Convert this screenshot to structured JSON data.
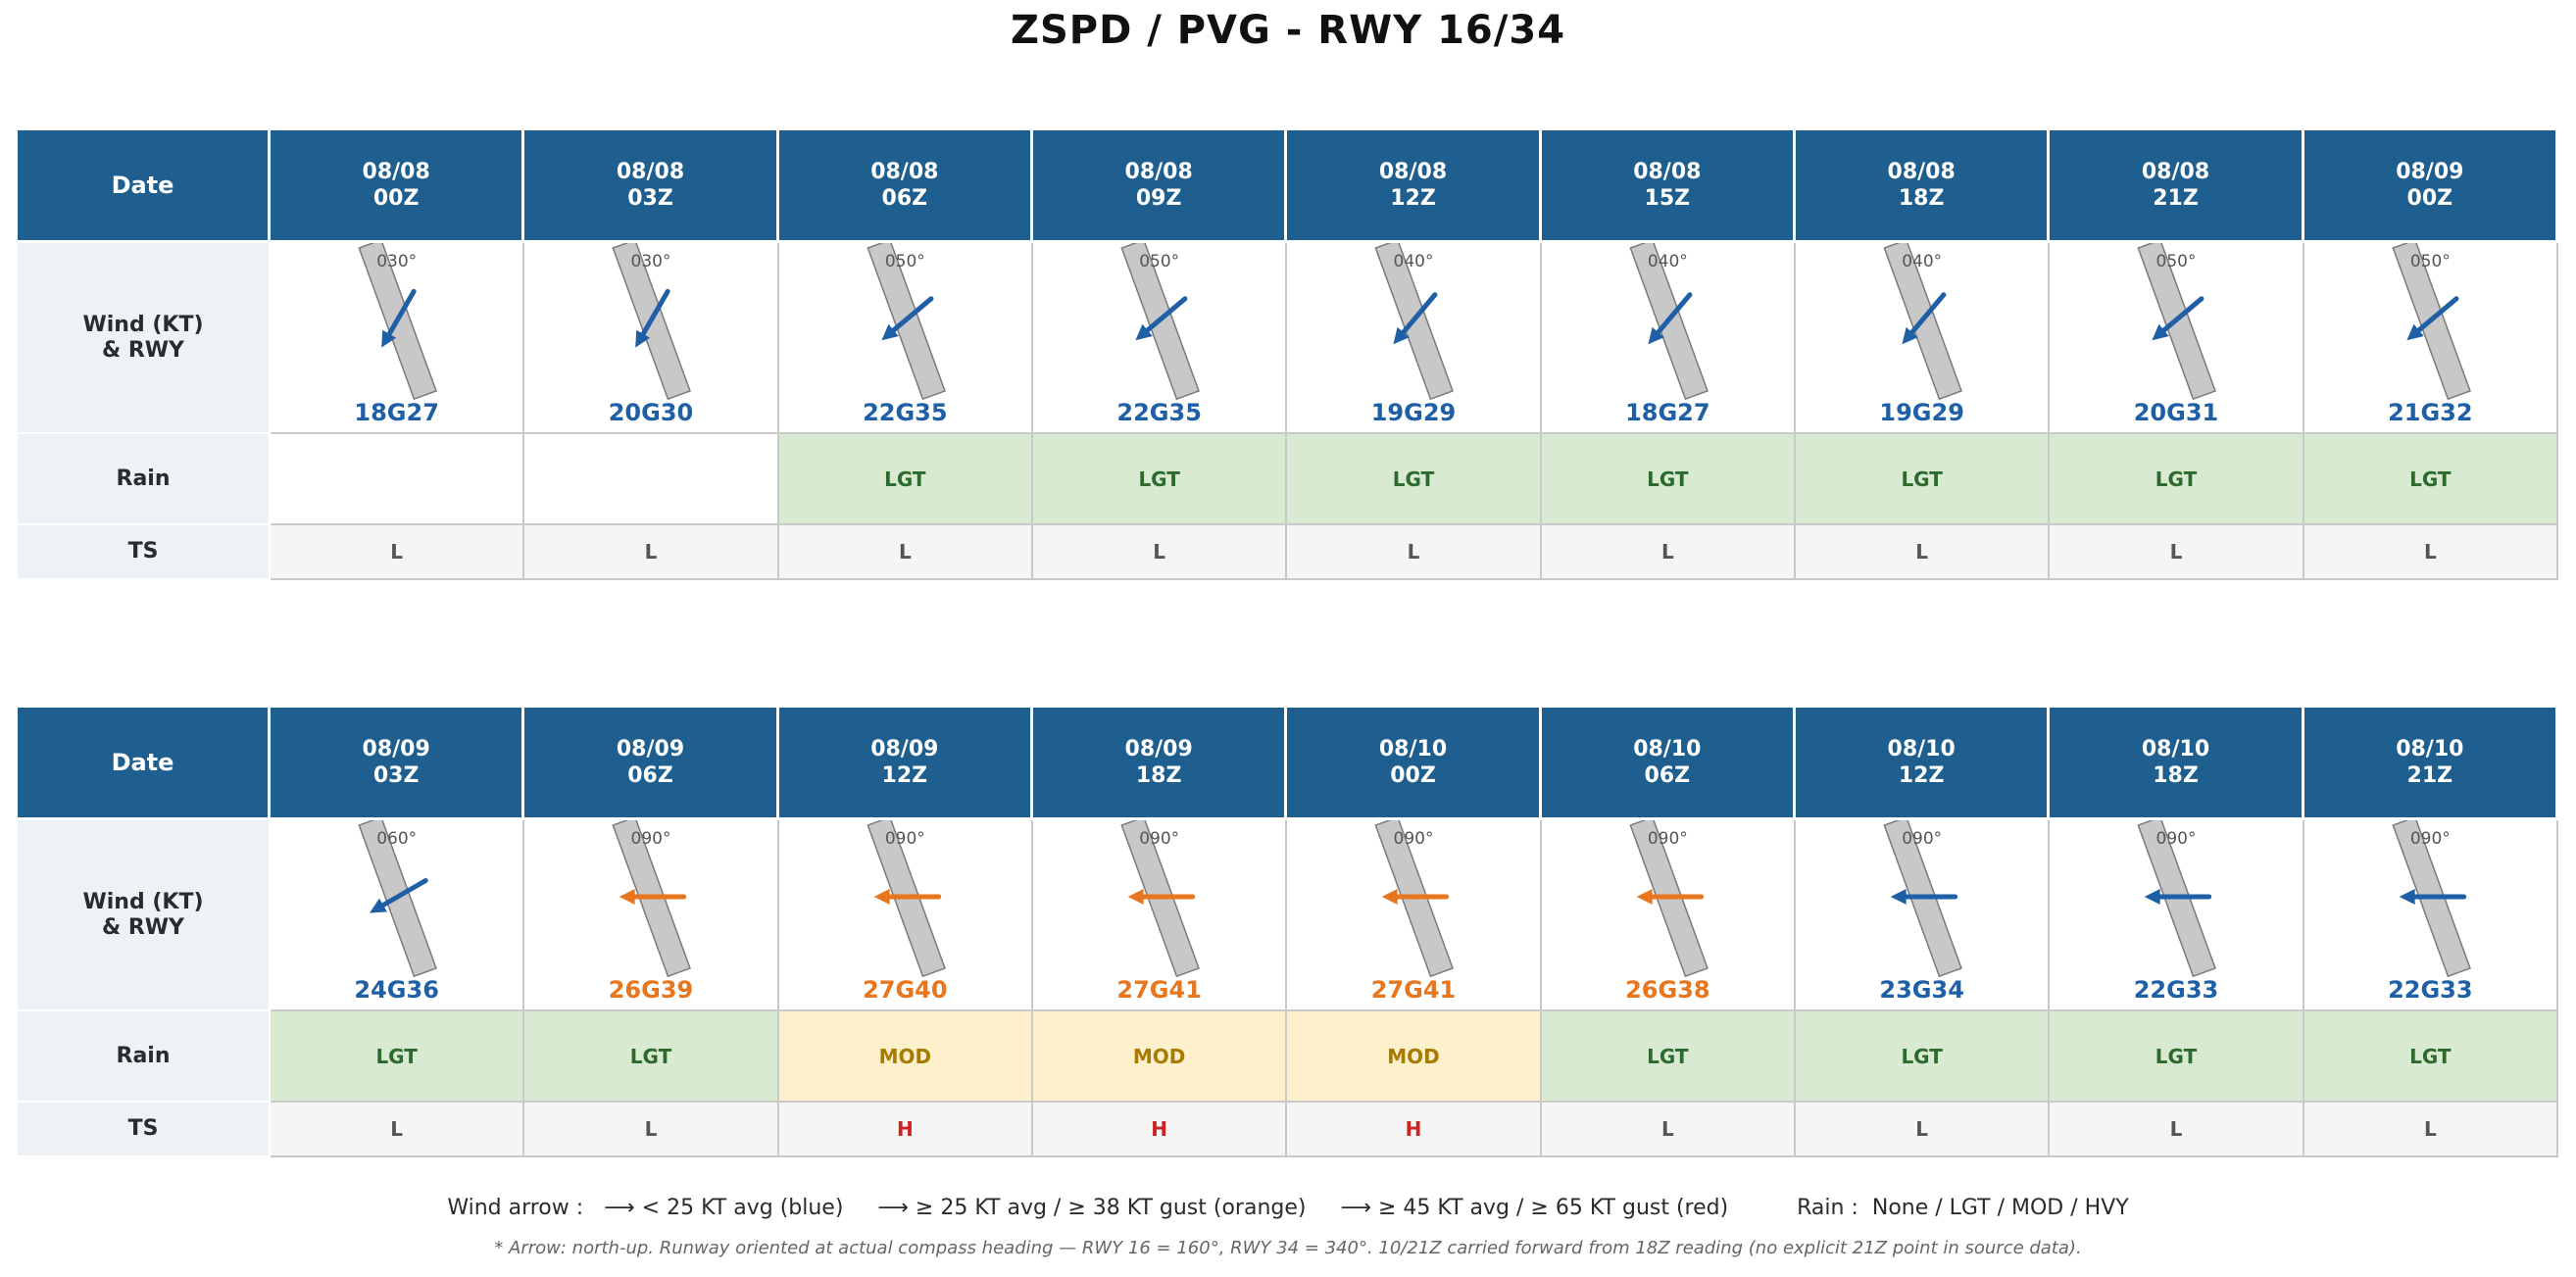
{
  "title": "ZSPD / PVG  -  RWY 16/34",
  "row_labels": {
    "date": "Date",
    "wind": "Wind (KT)\n& RWY",
    "rain": "Rain",
    "ts": "TS"
  },
  "colors": {
    "blue": "#1f5fa6",
    "orange": "#e8761e",
    "red": "#cc2222",
    "header": "#1f5f8f"
  },
  "runway_heading_deg": 160,
  "tables": [
    {
      "columns": [
        {
          "date": "08/08\n00Z",
          "dir_label": "030°",
          "dir_deg": 30,
          "wind": "18G27",
          "category": "blue",
          "rain": "",
          "rain_level": "none",
          "ts": "L"
        },
        {
          "date": "08/08\n03Z",
          "dir_label": "030°",
          "dir_deg": 30,
          "wind": "20G30",
          "category": "blue",
          "rain": "",
          "rain_level": "none",
          "ts": "L"
        },
        {
          "date": "08/08\n06Z",
          "dir_label": "050°",
          "dir_deg": 50,
          "wind": "22G35",
          "category": "blue",
          "rain": "LGT",
          "rain_level": "lgt",
          "ts": "L"
        },
        {
          "date": "08/08\n09Z",
          "dir_label": "050°",
          "dir_deg": 50,
          "wind": "22G35",
          "category": "blue",
          "rain": "LGT",
          "rain_level": "lgt",
          "ts": "L"
        },
        {
          "date": "08/08\n12Z",
          "dir_label": "040°",
          "dir_deg": 40,
          "wind": "19G29",
          "category": "blue",
          "rain": "LGT",
          "rain_level": "lgt",
          "ts": "L"
        },
        {
          "date": "08/08\n15Z",
          "dir_label": "040°",
          "dir_deg": 40,
          "wind": "18G27",
          "category": "blue",
          "rain": "LGT",
          "rain_level": "lgt",
          "ts": "L"
        },
        {
          "date": "08/08\n18Z",
          "dir_label": "040°",
          "dir_deg": 40,
          "wind": "19G29",
          "category": "blue",
          "rain": "LGT",
          "rain_level": "lgt",
          "ts": "L"
        },
        {
          "date": "08/08\n21Z",
          "dir_label": "050°",
          "dir_deg": 50,
          "wind": "20G31",
          "category": "blue",
          "rain": "LGT",
          "rain_level": "lgt",
          "ts": "L"
        },
        {
          "date": "08/09\n00Z",
          "dir_label": "050°",
          "dir_deg": 50,
          "wind": "21G32",
          "category": "blue",
          "rain": "LGT",
          "rain_level": "lgt",
          "ts": "L"
        }
      ]
    },
    {
      "columns": [
        {
          "date": "08/09\n03Z",
          "dir_label": "060°",
          "dir_deg": 60,
          "wind": "24G36",
          "category": "blue",
          "rain": "LGT",
          "rain_level": "lgt",
          "ts": "L"
        },
        {
          "date": "08/09\n06Z",
          "dir_label": "090°",
          "dir_deg": 90,
          "wind": "26G39",
          "category": "orange",
          "rain": "LGT",
          "rain_level": "lgt",
          "ts": "L"
        },
        {
          "date": "08/09\n12Z",
          "dir_label": "090°",
          "dir_deg": 90,
          "wind": "27G40",
          "category": "orange",
          "rain": "MOD",
          "rain_level": "mod",
          "ts": "H"
        },
        {
          "date": "08/09\n18Z",
          "dir_label": "090°",
          "dir_deg": 90,
          "wind": "27G41",
          "category": "orange",
          "rain": "MOD",
          "rain_level": "mod",
          "ts": "H"
        },
        {
          "date": "08/10\n00Z",
          "dir_label": "090°",
          "dir_deg": 90,
          "wind": "27G41",
          "category": "orange",
          "rain": "MOD",
          "rain_level": "mod",
          "ts": "H"
        },
        {
          "date": "08/10\n06Z",
          "dir_label": "090°",
          "dir_deg": 90,
          "wind": "26G38",
          "category": "orange",
          "rain": "LGT",
          "rain_level": "lgt",
          "ts": "L"
        },
        {
          "date": "08/10\n12Z",
          "dir_label": "090°",
          "dir_deg": 90,
          "wind": "23G34",
          "category": "blue",
          "rain": "LGT",
          "rain_level": "lgt",
          "ts": "L"
        },
        {
          "date": "08/10\n18Z",
          "dir_label": "090°",
          "dir_deg": 90,
          "wind": "22G33",
          "category": "blue",
          "rain": "LGT",
          "rain_level": "lgt",
          "ts": "L"
        },
        {
          "date": "08/10\n21Z",
          "dir_label": "090°",
          "dir_deg": 90,
          "wind": "22G33",
          "category": "blue",
          "rain": "LGT",
          "rain_level": "lgt",
          "ts": "L"
        }
      ]
    }
  ],
  "legend": {
    "text": "Wind arrow :   ⟶ < 25 KT avg (blue)     ⟶ ≥ 25 KT avg / ≥ 38 KT gust (orange)     ⟶ ≥ 45 KT avg / ≥ 65 KT gust (red)          Rain :  None / LGT / MOD / HVY",
    "note": "* Arrow: north-up. Runway oriented at actual compass heading — RWY 16 = 160°, RWY 34 = 340°.  10/21Z carried forward from 18Z reading (no explicit 21Z point in source data)."
  }
}
